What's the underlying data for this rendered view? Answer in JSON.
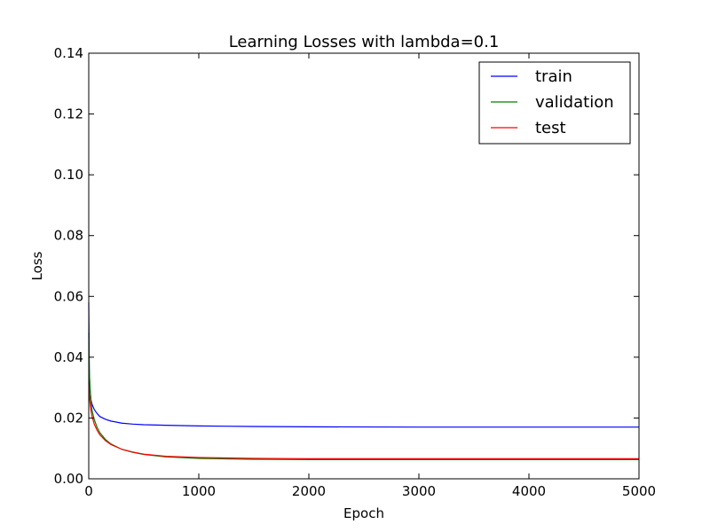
{
  "chart_data": {
    "type": "line",
    "title": "Learning Losses with lambda=0.1",
    "xlabel": "Epoch",
    "ylabel": "Loss",
    "xlim": [
      0,
      5000
    ],
    "ylim": [
      0,
      0.14
    ],
    "xticks": [
      0,
      1000,
      2000,
      3000,
      4000,
      5000
    ],
    "yticks": [
      0.0,
      0.02,
      0.04,
      0.06,
      0.08,
      0.1,
      0.12,
      0.14
    ],
    "grid": false,
    "legend_position": "top-right",
    "series": [
      {
        "name": "train",
        "color": "#0000ff",
        "x": [
          0,
          5,
          10,
          20,
          30,
          50,
          75,
          100,
          150,
          200,
          300,
          400,
          500,
          700,
          1000,
          1500,
          2000,
          3000,
          4000,
          5000
        ],
        "y": [
          0.058,
          0.036,
          0.03,
          0.026,
          0.0245,
          0.0228,
          0.0215,
          0.0205,
          0.0196,
          0.019,
          0.0183,
          0.018,
          0.0178,
          0.0176,
          0.0174,
          0.0172,
          0.0171,
          0.017,
          0.017,
          0.017
        ]
      },
      {
        "name": "validation",
        "color": "#008000",
        "x": [
          0,
          5,
          10,
          20,
          30,
          50,
          75,
          100,
          150,
          200,
          300,
          400,
          500,
          700,
          1000,
          1500,
          2000,
          3000,
          4000,
          5000
        ],
        "y": [
          0.048,
          0.036,
          0.031,
          0.0255,
          0.0225,
          0.0195,
          0.017,
          0.0152,
          0.013,
          0.0115,
          0.0097,
          0.0087,
          0.008,
          0.0072,
          0.0067,
          0.0064,
          0.0063,
          0.0063,
          0.0063,
          0.0063
        ]
      },
      {
        "name": "test",
        "color": "#ff0000",
        "x": [
          0,
          5,
          10,
          20,
          30,
          50,
          75,
          100,
          150,
          200,
          300,
          400,
          500,
          700,
          1000,
          1500,
          2000,
          3000,
          4000,
          5000
        ],
        "y": [
          0.032,
          0.028,
          0.0255,
          0.0225,
          0.0205,
          0.018,
          0.016,
          0.0145,
          0.0126,
          0.0113,
          0.0097,
          0.0088,
          0.0081,
          0.0074,
          0.007,
          0.0067,
          0.0066,
          0.0066,
          0.0066,
          0.0066
        ]
      }
    ]
  }
}
